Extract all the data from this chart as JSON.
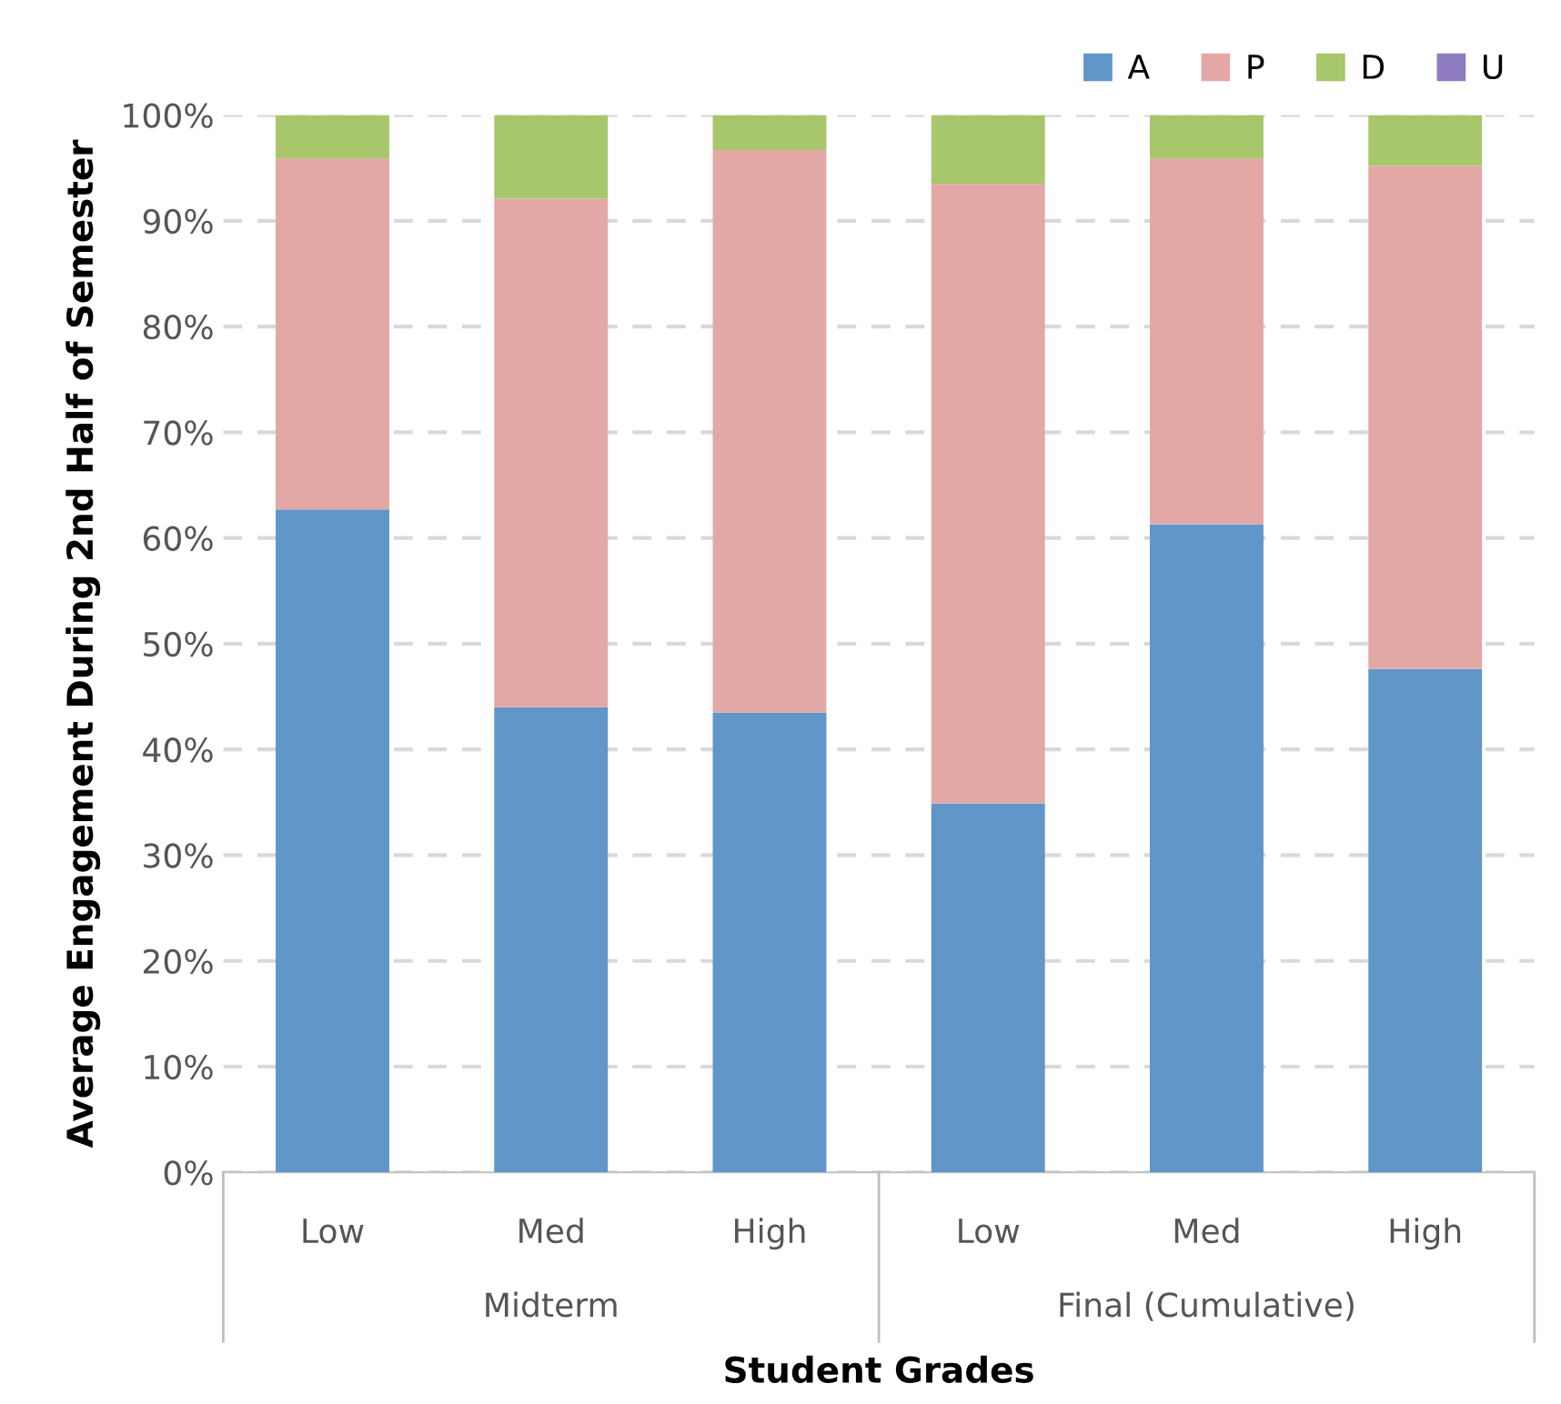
{
  "chart_data": {
    "type": "bar",
    "stacked": true,
    "xlabel": "Student Grades",
    "ylabel": "Average Engagement During 2nd Half of Semester",
    "categories": [
      "Low",
      "Med",
      "High",
      "Low",
      "Med",
      "High"
    ],
    "annotations": [
      "Midterm",
      "Final (Cumulative)"
    ],
    "series": [
      {
        "name": "A",
        "color": "#6096c8",
        "values": [
          62.7,
          44.0,
          43.5,
          34.9,
          61.3,
          47.6
        ]
      },
      {
        "name": "P",
        "color": "#e3a8a6",
        "values": [
          33.2,
          48.1,
          53.2,
          58.6,
          34.6,
          47.6
        ]
      },
      {
        "name": "D",
        "color": "#a8c66c",
        "values": [
          4.1,
          7.9,
          3.3,
          6.5,
          4.1,
          4.8
        ]
      },
      {
        "name": "U",
        "color": "#8e7cc3",
        "values": [
          0,
          0,
          0,
          0,
          0,
          0
        ]
      }
    ],
    "ylim": [
      0,
      100
    ],
    "yticks": [
      {
        "value": 0,
        "label": "0%"
      },
      {
        "value": 10,
        "label": "10%"
      },
      {
        "value": 20,
        "label": "20%"
      },
      {
        "value": 30,
        "label": "30%"
      },
      {
        "value": 40,
        "label": "40%"
      },
      {
        "value": 50,
        "label": "50%"
      },
      {
        "value": 60,
        "label": "60%"
      },
      {
        "value": 70,
        "label": "70%"
      },
      {
        "value": 80,
        "label": "80%"
      },
      {
        "value": 90,
        "label": "90%"
      },
      {
        "value": 100,
        "label": "100%"
      }
    ],
    "grid": "y",
    "legend": "top right"
  }
}
